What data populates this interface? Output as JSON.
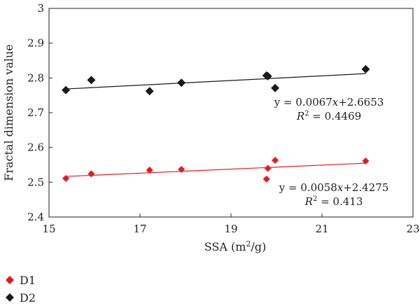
{
  "chart_data": {
    "type": "scatter",
    "xlabel": "SSA (m",
    "xlabel_sup": "2",
    "xlabel_end": "/g)",
    "ylabel": "Fractal dimension value",
    "xlim": [
      15,
      23
    ],
    "ylim": [
      2.4,
      3
    ],
    "xticks": [
      "15",
      "17",
      "19",
      "21",
      "23"
    ],
    "yticks": [
      "2.4",
      "2.5",
      "2.6",
      "2.7",
      "2.8",
      "2.9",
      "3"
    ],
    "grid": false,
    "legend_position": "bottom-left",
    "series": [
      {
        "name": "D1",
        "color": "#e8191e",
        "marker": "diamond",
        "points": [
          [
            15.37,
            2.511
          ],
          [
            15.93,
            2.524
          ],
          [
            17.21,
            2.535
          ],
          [
            17.91,
            2.537
          ],
          [
            19.78,
            2.509
          ],
          [
            19.81,
            2.54
          ],
          [
            19.97,
            2.563
          ],
          [
            21.96,
            2.561
          ]
        ],
        "trend": {
          "slope": 0.0058,
          "intercept": 2.4275
        },
        "equation": {
          "prefix": "y = 0.0058",
          "var": "x",
          "suffix": "+2.4275",
          "r2_lead": "R",
          "r2_sup": "2",
          "r2_tail": " = 0.413"
        }
      },
      {
        "name": "D2",
        "color": "#1a1a1a",
        "marker": "diamond",
        "points": [
          [
            15.37,
            2.765
          ],
          [
            15.93,
            2.794
          ],
          [
            17.21,
            2.762
          ],
          [
            17.91,
            2.786
          ],
          [
            19.78,
            2.807
          ],
          [
            19.81,
            2.805
          ],
          [
            19.97,
            2.771
          ],
          [
            21.96,
            2.825
          ]
        ],
        "trend": {
          "slope": 0.0067,
          "intercept": 2.6653
        },
        "equation": {
          "prefix": "y = 0.0067",
          "var": "x",
          "suffix": "+2.6653",
          "r2_lead": "R",
          "r2_sup": "2",
          "r2_tail": " = 0.4469"
        }
      }
    ]
  }
}
